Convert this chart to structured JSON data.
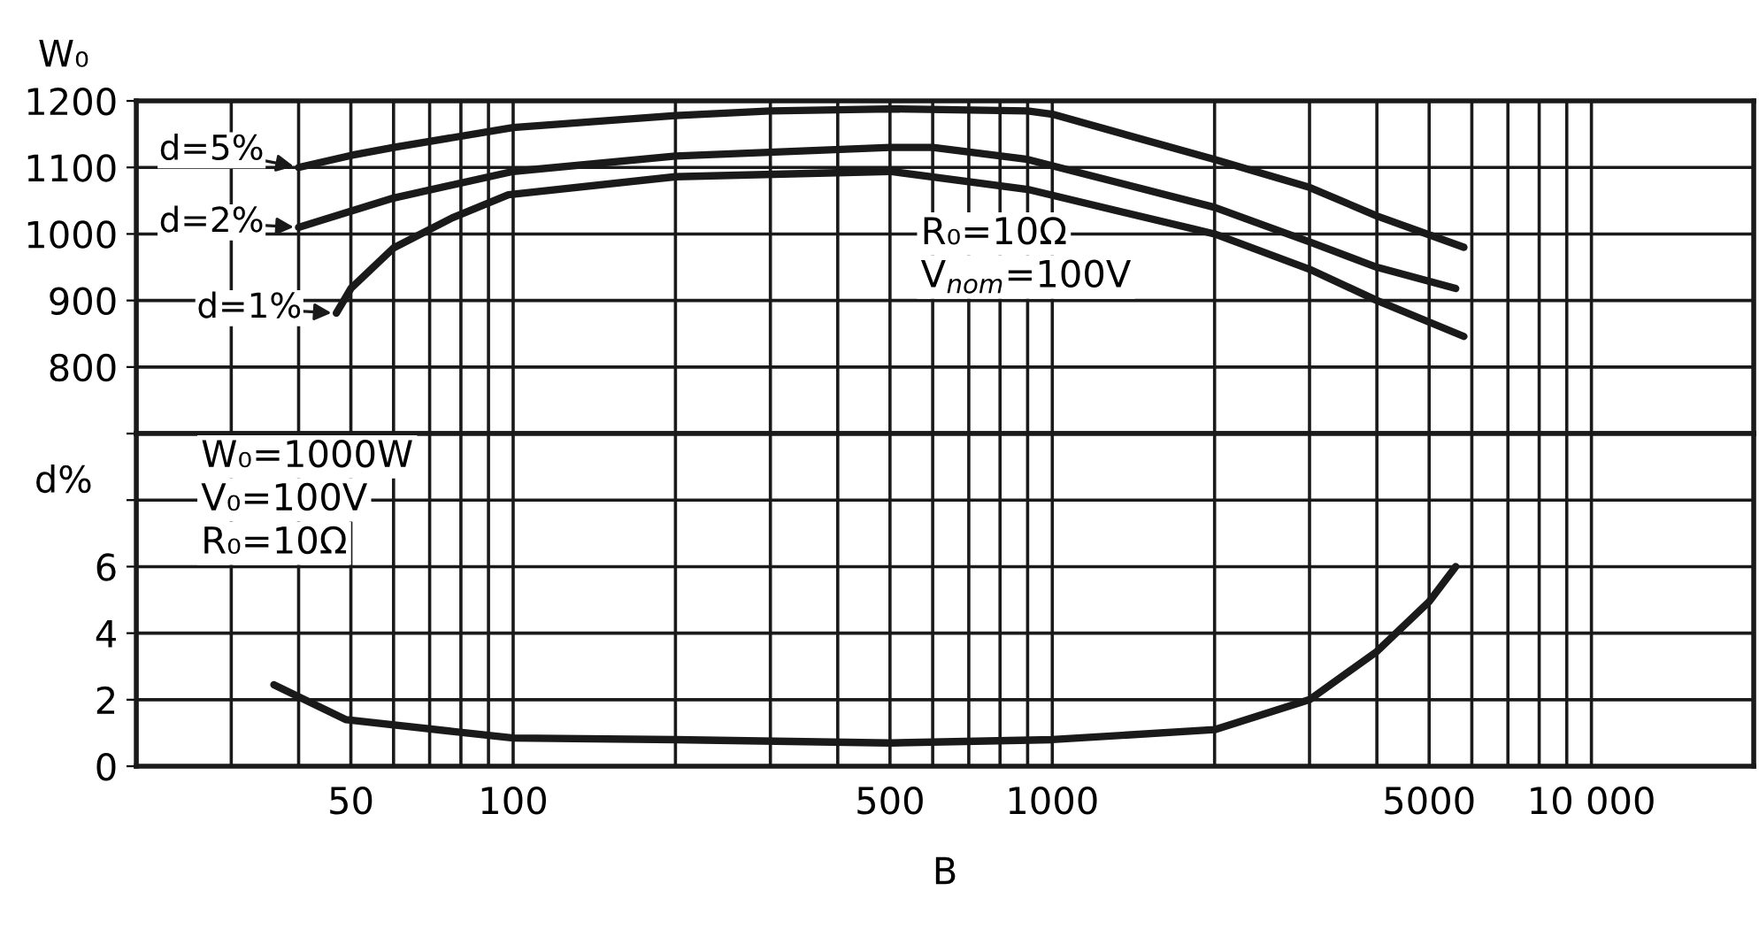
{
  "chart_data": [
    {
      "type": "line",
      "ylabel": "W₀",
      "xlim": [
        20,
        20000
      ],
      "ylim": [
        700,
        1200
      ],
      "xticks": [
        {
          "value": 30,
          "label": null
        },
        {
          "value": 40,
          "label": null
        },
        50,
        {
          "value": 60,
          "label": null
        },
        {
          "value": 70,
          "label": null
        },
        {
          "value": 80,
          "label": null
        },
        {
          "value": 90,
          "label": null
        },
        100,
        {
          "value": 200,
          "label": null
        },
        {
          "value": 300,
          "label": null
        },
        {
          "value": 400,
          "label": null
        },
        500,
        {
          "value": 600,
          "label": null
        },
        {
          "value": 700,
          "label": null
        },
        {
          "value": 800,
          "label": null
        },
        {
          "value": 900,
          "label": null
        },
        1000,
        {
          "value": 2000,
          "label": null
        },
        {
          "value": 3000,
          "label": null
        },
        {
          "value": 4000,
          "label": null
        },
        5000,
        {
          "value": 6000,
          "label": null
        },
        {
          "value": 7000,
          "label": null
        },
        {
          "value": 8000,
          "label": null
        },
        {
          "value": 9000,
          "label": null
        },
        {
          "value": 10000,
          "label": null
        }
      ],
      "yticks": [
        {
          "value": 700,
          "label": null
        },
        800,
        900,
        1000,
        1100,
        1200
      ],
      "log": "x",
      "grid": true,
      "tick_labels": "y",
      "legend": "top left",
      "annotations": [
        "R₀=10Ω",
        "V$_{nom}$=100V"
      ],
      "series": [
        {
          "name": "d=5%",
          "color": "#1a1a1a",
          "x": [
            40,
            50,
            60,
            100,
            200,
            300,
            500,
            900,
            1000,
            2000,
            3000,
            4000,
            5800
          ],
          "values": [
            1100,
            1118,
            1130,
            1160,
            1178,
            1185,
            1188,
            1185,
            1180,
            1112,
            1070,
            1027,
            980
          ]
        },
        {
          "name": "d=2%",
          "color": "#1a1a1a",
          "x": [
            40,
            60,
            100,
            200,
            500,
            600,
            900,
            2000,
            3000,
            4000,
            5600
          ],
          "values": [
            1010,
            1054,
            1094,
            1117,
            1130,
            1130,
            1112,
            1040,
            988,
            950,
            918
          ]
        },
        {
          "name": "d=1%",
          "color": "#1a1a1a",
          "x": [
            47,
            50,
            60,
            77,
            98,
            200,
            500,
            900,
            2000,
            3000,
            4000,
            5800
          ],
          "values": [
            881,
            918,
            979,
            1024,
            1059,
            1086,
            1094,
            1067,
            1000,
            947,
            900,
            846
          ]
        }
      ]
    },
    {
      "type": "line",
      "ylabel": "d%",
      "xlabel": "B",
      "xlim": [
        20,
        20000
      ],
      "ylim": [
        0,
        10
      ],
      "xticks": [
        {
          "value": 30,
          "label": null
        },
        {
          "value": 40,
          "label": null
        },
        50,
        {
          "value": 60,
          "label": null
        },
        {
          "value": 70,
          "label": null
        },
        {
          "value": 80,
          "label": null
        },
        {
          "value": 90,
          "label": null
        },
        100,
        {
          "value": 200,
          "label": null
        },
        {
          "value": 300,
          "label": null
        },
        {
          "value": 400,
          "label": null
        },
        500,
        {
          "value": 600,
          "label": null
        },
        {
          "value": 700,
          "label": null
        },
        {
          "value": 800,
          "label": null
        },
        {
          "value": 900,
          "label": null
        },
        1000,
        {
          "value": 2000,
          "label": null
        },
        {
          "value": 3000,
          "label": null
        },
        {
          "value": 4000,
          "label": null
        },
        5000,
        {
          "value": 6000,
          "label": null
        },
        {
          "value": 7000,
          "label": null
        },
        {
          "value": 8000,
          "label": null
        },
        {
          "value": 9000,
          "label": null
        },
        {
          "value": 10000,
          "label": "10 000"
        }
      ],
      "yticks": [
        0,
        2,
        4,
        6,
        {
          "value": 8,
          "label": null
        }
      ],
      "log": "x",
      "grid": true,
      "annotations": [
        "W₀=1000W",
        "V₀=100V",
        "R₀=10Ω"
      ],
      "series": [
        {
          "color": "#1a1a1a",
          "x": [
            36,
            49,
            77,
            100,
            200,
            500,
            1000,
            2000,
            3000,
            4000,
            5000,
            5600
          ],
          "values": [
            2.45,
            1.4,
            1.05,
            0.85,
            0.8,
            0.7,
            0.8,
            1.1,
            2.0,
            3.45,
            4.95,
            6.0
          ]
        }
      ]
    }
  ]
}
